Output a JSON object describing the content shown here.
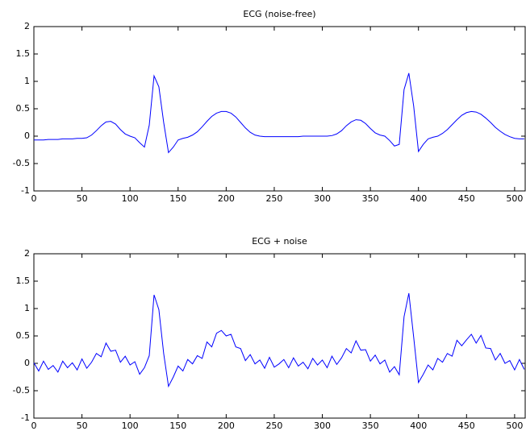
{
  "chart_data": [
    {
      "type": "line",
      "title": "ECG (noise-free)",
      "x": [
        0,
        5,
        10,
        15,
        20,
        25,
        30,
        35,
        40,
        45,
        50,
        55,
        60,
        65,
        70,
        75,
        80,
        85,
        90,
        95,
        100,
        105,
        110,
        115,
        120,
        125,
        130,
        135,
        140,
        145,
        150,
        155,
        160,
        165,
        170,
        175,
        180,
        185,
        190,
        195,
        200,
        205,
        210,
        215,
        220,
        225,
        230,
        235,
        240,
        245,
        250,
        255,
        260,
        265,
        270,
        275,
        280,
        285,
        290,
        295,
        300,
        305,
        310,
        315,
        320,
        325,
        330,
        335,
        340,
        345,
        350,
        355,
        360,
        365,
        370,
        375,
        380,
        385,
        390,
        395,
        400,
        405,
        410,
        415,
        420,
        425,
        430,
        435,
        440,
        445,
        450,
        455,
        460,
        465,
        470,
        475,
        480,
        485,
        490,
        495,
        500,
        505,
        510
      ],
      "values": [
        -0.07,
        -0.07,
        -0.07,
        -0.06,
        -0.06,
        -0.06,
        -0.05,
        -0.05,
        -0.05,
        -0.04,
        -0.04,
        -0.03,
        0.02,
        0.1,
        0.19,
        0.26,
        0.27,
        0.22,
        0.12,
        0.04,
        0.0,
        -0.03,
        -0.12,
        -0.2,
        0.2,
        1.1,
        0.9,
        0.25,
        -0.3,
        -0.2,
        -0.07,
        -0.04,
        -0.02,
        0.02,
        0.08,
        0.17,
        0.27,
        0.36,
        0.42,
        0.45,
        0.45,
        0.42,
        0.35,
        0.25,
        0.15,
        0.07,
        0.02,
        0.0,
        -0.01,
        -0.01,
        -0.01,
        -0.01,
        -0.01,
        -0.01,
        -0.01,
        -0.01,
        0,
        0,
        0,
        0,
        0,
        0.0,
        0.01,
        0.04,
        0.1,
        0.19,
        0.26,
        0.3,
        0.29,
        0.23,
        0.14,
        0.06,
        0.02,
        0.0,
        -0.08,
        -0.18,
        -0.15,
        0.85,
        1.15,
        0.55,
        -0.28,
        -0.15,
        -0.05,
        -0.02,
        0.0,
        0.05,
        0.12,
        0.21,
        0.3,
        0.38,
        0.43,
        0.45,
        0.44,
        0.4,
        0.33,
        0.25,
        0.16,
        0.09,
        0.03,
        -0.01,
        -0.04,
        -0.05,
        -0.05
      ],
      "color": "#0000ff",
      "xlim": [
        0,
        511
      ],
      "ylim": [
        -1,
        2
      ],
      "xticks": [
        0,
        50,
        100,
        150,
        200,
        250,
        300,
        350,
        400,
        450,
        500
      ],
      "yticks": [
        -1,
        -0.5,
        0,
        0.5,
        1,
        1.5,
        2
      ]
    },
    {
      "type": "line",
      "title": "ECG + noise",
      "x": [
        0,
        5,
        10,
        15,
        20,
        25,
        30,
        35,
        40,
        45,
        50,
        55,
        60,
        65,
        70,
        75,
        80,
        85,
        90,
        95,
        100,
        105,
        110,
        115,
        120,
        125,
        130,
        135,
        140,
        145,
        150,
        155,
        160,
        165,
        170,
        175,
        180,
        185,
        190,
        195,
        200,
        205,
        210,
        215,
        220,
        225,
        230,
        235,
        240,
        245,
        250,
        255,
        260,
        265,
        270,
        275,
        280,
        285,
        290,
        295,
        300,
        305,
        310,
        315,
        320,
        325,
        330,
        335,
        340,
        345,
        350,
        355,
        360,
        365,
        370,
        375,
        380,
        385,
        390,
        395,
        400,
        405,
        410,
        415,
        420,
        425,
        430,
        435,
        440,
        445,
        450,
        455,
        460,
        465,
        470,
        475,
        480,
        485,
        490,
        495,
        500,
        505,
        510
      ],
      "values": [
        0.01,
        -0.14,
        0.04,
        -0.11,
        -0.04,
        -0.16,
        0.04,
        -0.08,
        0.01,
        -0.12,
        0.08,
        -0.09,
        0.02,
        0.18,
        0.12,
        0.37,
        0.22,
        0.24,
        0.02,
        0.13,
        -0.03,
        0.03,
        -0.2,
        -0.08,
        0.14,
        1.25,
        0.98,
        0.18,
        -0.42,
        -0.25,
        -0.05,
        -0.14,
        0.07,
        -0.01,
        0.14,
        0.09,
        0.39,
        0.3,
        0.55,
        0.6,
        0.5,
        0.53,
        0.3,
        0.27,
        0.05,
        0.16,
        -0.01,
        0.06,
        -0.09,
        0.11,
        -0.07,
        -0.01,
        0.07,
        -0.08,
        0.1,
        -0.05,
        0.02,
        -0.1,
        0.09,
        -0.03,
        0.06,
        -0.08,
        0.13,
        -0.02,
        0.1,
        0.27,
        0.19,
        0.41,
        0.24,
        0.25,
        0.04,
        0.15,
        -0.01,
        0.06,
        -0.16,
        -0.06,
        -0.21,
        0.85,
        1.28,
        0.48,
        -0.35,
        -0.2,
        -0.03,
        -0.12,
        0.09,
        0.02,
        0.18,
        0.13,
        0.42,
        0.32,
        0.43,
        0.53,
        0.37,
        0.51,
        0.28,
        0.27,
        0.06,
        0.18,
        0,
        0.05,
        -0.12,
        0.07,
        -0.11
      ],
      "color": "#0000ff",
      "xlim": [
        0,
        511
      ],
      "ylim": [
        -1,
        2
      ],
      "xticks": [
        0,
        50,
        100,
        150,
        200,
        250,
        300,
        350,
        400,
        450,
        500
      ],
      "yticks": [
        -1,
        -0.5,
        0,
        0.5,
        1,
        1.5,
        2
      ]
    }
  ]
}
